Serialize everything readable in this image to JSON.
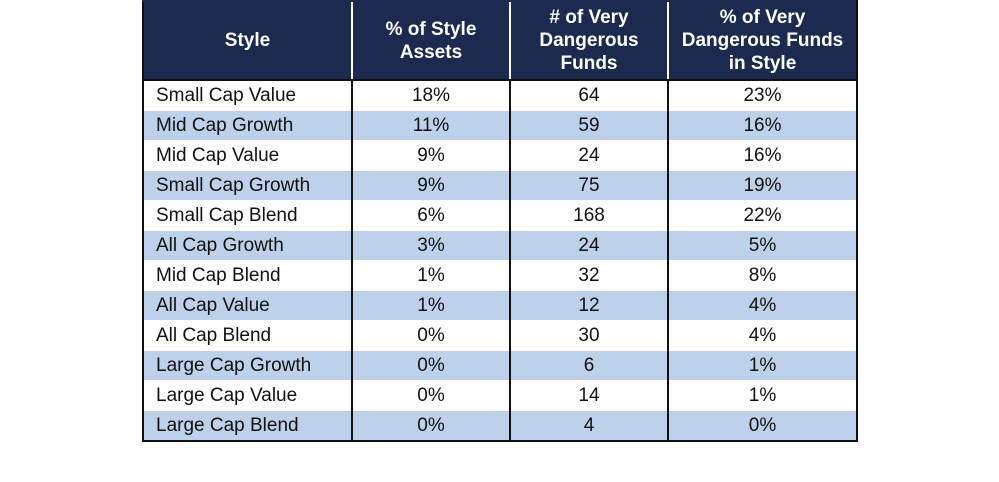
{
  "table": {
    "headers": [
      "Style",
      "% of Style Assets",
      "# of Very Dangerous Funds",
      "% of Very Dangerous Funds in Style"
    ],
    "rows": [
      {
        "style": "Small Cap Value",
        "pct_assets": "18%",
        "num_dangerous": "64",
        "pct_dangerous": "23%"
      },
      {
        "style": "Mid Cap Growth",
        "pct_assets": "11%",
        "num_dangerous": "59",
        "pct_dangerous": "16%"
      },
      {
        "style": "Mid Cap Value",
        "pct_assets": "9%",
        "num_dangerous": "24",
        "pct_dangerous": "16%"
      },
      {
        "style": "Small Cap Growth",
        "pct_assets": "9%",
        "num_dangerous": "75",
        "pct_dangerous": "19%"
      },
      {
        "style": "Small Cap Blend",
        "pct_assets": "6%",
        "num_dangerous": "168",
        "pct_dangerous": "22%"
      },
      {
        "style": "All Cap Growth",
        "pct_assets": "3%",
        "num_dangerous": "24",
        "pct_dangerous": "5%"
      },
      {
        "style": "Mid Cap Blend",
        "pct_assets": "1%",
        "num_dangerous": "32",
        "pct_dangerous": "8%"
      },
      {
        "style": "All Cap Value",
        "pct_assets": "1%",
        "num_dangerous": "12",
        "pct_dangerous": "4%"
      },
      {
        "style": "All Cap Blend",
        "pct_assets": "0%",
        "num_dangerous": "30",
        "pct_dangerous": "4%"
      },
      {
        "style": "Large Cap Growth",
        "pct_assets": "0%",
        "num_dangerous": "6",
        "pct_dangerous": "1%"
      },
      {
        "style": "Large Cap Value",
        "pct_assets": "0%",
        "num_dangerous": "14",
        "pct_dangerous": "1%"
      },
      {
        "style": "Large Cap Blend",
        "pct_assets": "0%",
        "num_dangerous": "4",
        "pct_dangerous": "0%"
      }
    ]
  },
  "colors": {
    "header_background": "#1b2a4e",
    "header_text": "#ffffff",
    "stripe_row": "#bdd1ea",
    "plain_row": "#ffffff"
  }
}
